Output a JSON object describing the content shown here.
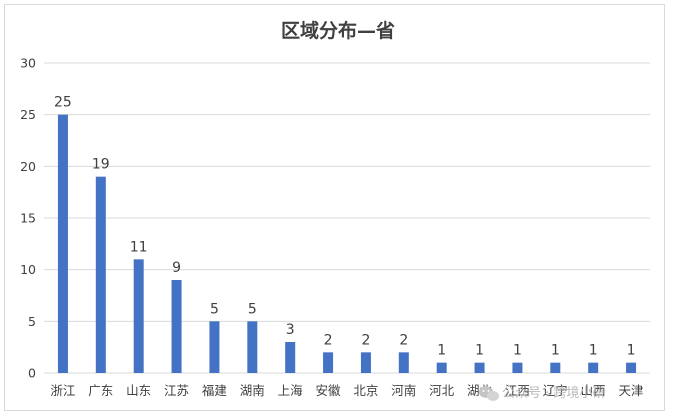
{
  "chart_data": {
    "type": "bar",
    "title": "区域分布—省",
    "categories": [
      "浙江",
      "广东",
      "山东",
      "江苏",
      "福建",
      "湖南",
      "上海",
      "安徽",
      "北京",
      "河南",
      "河北",
      "湖北",
      "江西",
      "辽宁",
      "山西",
      "天津"
    ],
    "values": [
      25,
      19,
      11,
      9,
      5,
      5,
      3,
      2,
      2,
      2,
      1,
      1,
      1,
      1,
      1,
      1
    ],
    "ylim": [
      0,
      30
    ],
    "yticks": [
      0,
      5,
      10,
      15,
      20,
      25,
      30
    ],
    "xlabel": "",
    "ylabel": "",
    "grid": true,
    "legend": "none",
    "bar_color": "#4472c4",
    "data_labels": true
  },
  "watermark": {
    "text": "公众号 · 跨境小研",
    "icon": "wechat-icon"
  }
}
